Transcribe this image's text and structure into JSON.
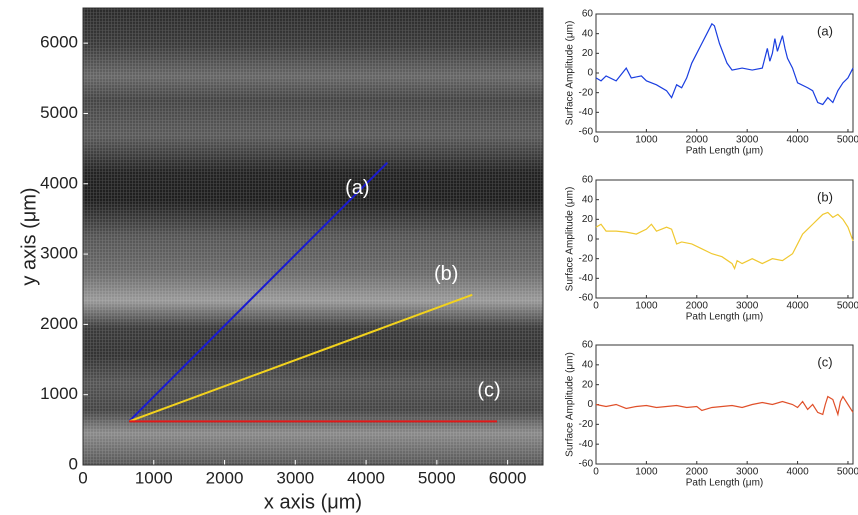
{
  "chart_data": [
    {
      "type": "line",
      "xlabel": "x axis (μm)",
      "ylabel": "y axis (μm)",
      "xlim": [
        0,
        6500
      ],
      "xticks": [
        0,
        1000,
        2000,
        3000,
        4000,
        5000,
        6000
      ],
      "ylim": [
        0,
        6500
      ],
      "yticks": [
        0,
        1000,
        2000,
        3000,
        4000,
        5000,
        6000
      ],
      "series": [
        {
          "label": "(a)",
          "color": "#1a1ad0",
          "x": [
            650,
            4300
          ],
          "values": [
            620,
            4300
          ]
        },
        {
          "label": "(b)",
          "color": "#f2d21e",
          "x": [
            650,
            5500
          ],
          "values": [
            620,
            2420
          ]
        },
        {
          "label": "(c)",
          "color": "#e01818",
          "x": [
            650,
            5850
          ],
          "values": [
            620,
            620
          ]
        }
      ]
    },
    {
      "type": "line",
      "annotation": "(a)",
      "xlabel": "Path Length (μm)",
      "ylabel": "Surface Amplitude (μm)",
      "xlim": [
        0,
        5100
      ],
      "xticks": [
        0,
        1000,
        2000,
        3000,
        4000,
        5000
      ],
      "ylim": [
        -60,
        60
      ],
      "yticks": [
        -60,
        -40,
        -20,
        0,
        20,
        40,
        60
      ],
      "series": [
        {
          "color": "#1a3ee0",
          "x": [
            0,
            100,
            200,
            400,
            600,
            700,
            900,
            1000,
            1200,
            1400,
            1500,
            1600,
            1700,
            1800,
            1900,
            2000,
            2100,
            2200,
            2300,
            2350,
            2450,
            2600,
            2700,
            2900,
            3100,
            3300,
            3400,
            3450,
            3500,
            3550,
            3600,
            3700,
            3750,
            3800,
            3900,
            4000,
            4200,
            4300,
            4400,
            4500,
            4600,
            4700,
            4800,
            4900,
            5000,
            5100
          ],
          "values": [
            -5,
            -8,
            -3,
            -8,
            5,
            -5,
            -3,
            -8,
            -12,
            -18,
            -25,
            -12,
            -15,
            -5,
            10,
            20,
            30,
            40,
            50,
            48,
            30,
            10,
            3,
            5,
            3,
            5,
            25,
            12,
            20,
            35,
            22,
            38,
            25,
            15,
            5,
            -10,
            -15,
            -18,
            -30,
            -32,
            -25,
            -30,
            -18,
            -10,
            -5,
            5
          ]
        }
      ]
    },
    {
      "type": "line",
      "annotation": "(b)",
      "xlabel": "Path Length (μm)",
      "ylabel": "Surface Amplitude (μm)",
      "xlim": [
        0,
        5100
      ],
      "xticks": [
        0,
        1000,
        2000,
        3000,
        4000,
        5000
      ],
      "ylim": [
        -60,
        60
      ],
      "yticks": [
        -60,
        -40,
        -20,
        0,
        20,
        40,
        60
      ],
      "series": [
        {
          "color": "#f0c830",
          "x": [
            0,
            100,
            200,
            400,
            600,
            800,
            1000,
            1100,
            1200,
            1300,
            1400,
            1500,
            1600,
            1700,
            1900,
            2100,
            2300,
            2500,
            2700,
            2750,
            2800,
            2900,
            3100,
            3300,
            3500,
            3700,
            3900,
            4000,
            4100,
            4200,
            4300,
            4400,
            4500,
            4600,
            4700,
            4800,
            4900,
            5000,
            5100
          ],
          "values": [
            12,
            15,
            8,
            8,
            7,
            5,
            10,
            15,
            8,
            10,
            12,
            10,
            -5,
            -3,
            -5,
            -10,
            -15,
            -18,
            -25,
            -30,
            -22,
            -25,
            -20,
            -25,
            -20,
            -22,
            -15,
            -5,
            5,
            10,
            15,
            20,
            25,
            27,
            22,
            25,
            20,
            12,
            -2
          ]
        }
      ]
    },
    {
      "type": "line",
      "annotation": "(c)",
      "xlabel": "Path Length (μm)",
      "ylabel": "Surface Amplitude (μm)",
      "xlim": [
        0,
        5100
      ],
      "xticks": [
        0,
        1000,
        2000,
        3000,
        4000,
        5000
      ],
      "ylim": [
        -60,
        60
      ],
      "yticks": [
        -60,
        -40,
        -20,
        0,
        20,
        40,
        60
      ],
      "series": [
        {
          "color": "#e0502a",
          "x": [
            0,
            200,
            400,
            600,
            800,
            1000,
            1200,
            1400,
            1600,
            1800,
            2000,
            2100,
            2300,
            2500,
            2700,
            2900,
            3100,
            3300,
            3500,
            3700,
            3900,
            4000,
            4100,
            4200,
            4300,
            4400,
            4500,
            4550,
            4600,
            4700,
            4800,
            4850,
            4900,
            5000,
            5100
          ],
          "values": [
            0,
            -2,
            0,
            -4,
            -2,
            -1,
            -3,
            -2,
            -1,
            -3,
            -2,
            -6,
            -3,
            -2,
            -1,
            -3,
            0,
            2,
            0,
            3,
            0,
            -3,
            3,
            -5,
            0,
            -8,
            -10,
            0,
            8,
            5,
            -10,
            3,
            8,
            0,
            -8
          ]
        }
      ]
    }
  ]
}
